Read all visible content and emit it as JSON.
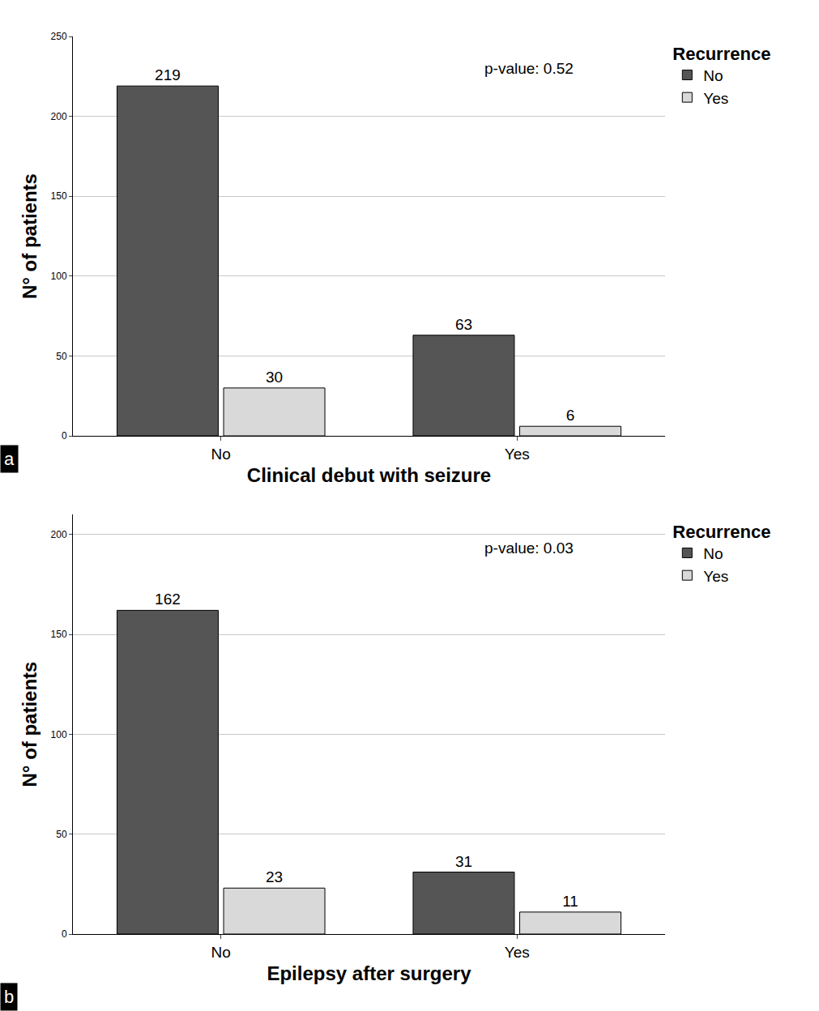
{
  "chart_data": [
    {
      "type": "bar",
      "panel_label": "a",
      "categories": [
        "No",
        "Yes"
      ],
      "series": [
        {
          "name": "No",
          "color": "#555555",
          "values": [
            219,
            63
          ]
        },
        {
          "name": "Yes",
          "color": "#d9d9d9",
          "values": [
            30,
            6
          ]
        }
      ],
      "x_label": "Clinical debut with seizure",
      "y_label": "N° of patients",
      "legend_title": "Recurrence",
      "legend": "top right",
      "annotations": [
        {
          "text": "p-value: 0.52"
        }
      ],
      "ylim": [
        0,
        250
      ],
      "yticks": [
        0,
        50,
        100,
        150,
        200,
        250
      ],
      "grid": true,
      "data_labels": true
    },
    {
      "type": "bar",
      "panel_label": "b",
      "categories": [
        "No",
        "Yes"
      ],
      "series": [
        {
          "name": "No",
          "color": "#555555",
          "values": [
            162,
            31
          ]
        },
        {
          "name": "Yes",
          "color": "#d9d9d9",
          "values": [
            23,
            11
          ]
        }
      ],
      "x_label": "Epilepsy after surgery",
      "y_label": "N° of patients",
      "legend_title": "Recurrence",
      "legend": "top right",
      "annotations": [
        {
          "text": "p-value: 0.03"
        }
      ],
      "ylim": [
        0,
        210
      ],
      "yticks": [
        0,
        50,
        100,
        150,
        200
      ],
      "grid": true,
      "data_labels": true
    }
  ]
}
